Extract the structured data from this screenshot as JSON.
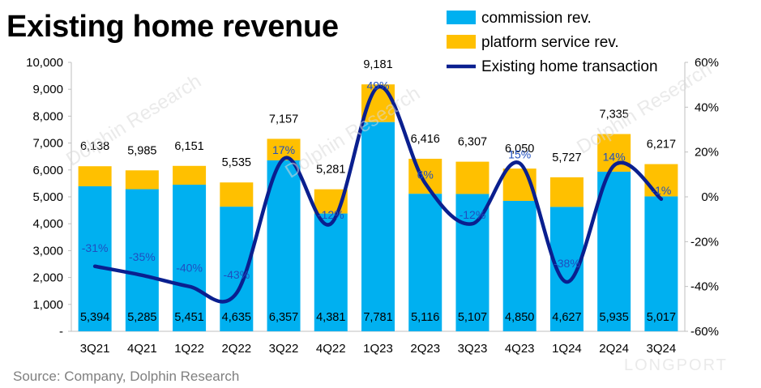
{
  "title": "Existing home revenue",
  "source": "Source: Company, Dolphin Research",
  "watermarks": [
    "Dolphin Research",
    "Dolphin Research",
    "Dolphin Research",
    "LONGPORT"
  ],
  "colors": {
    "commission": "#00B0F0",
    "platform": "#FFC000",
    "line": "#0A1F8F",
    "pct_label": "#1F4FC0"
  },
  "chart_data": {
    "type": "bar",
    "categories": [
      "3Q21",
      "4Q21",
      "1Q22",
      "2Q22",
      "3Q22",
      "4Q22",
      "1Q23",
      "2Q23",
      "3Q23",
      "4Q23",
      "1Q24",
      "2Q24",
      "3Q24"
    ],
    "series": [
      {
        "name": "commission rev.",
        "type": "bar",
        "stack": "rev",
        "axis": "left",
        "values": [
          5394,
          5285,
          5451,
          4635,
          6357,
          4381,
          7781,
          5116,
          5107,
          4850,
          4627,
          5935,
          5017
        ]
      },
      {
        "name": "platform service rev.",
        "type": "bar",
        "stack": "rev",
        "axis": "left",
        "values": [
          744,
          700,
          700,
          900,
          800,
          900,
          1400,
          1300,
          1200,
          1200,
          1100,
          1400,
          1200
        ]
      },
      {
        "name": "Existing home transaction",
        "type": "line",
        "axis": "right",
        "values": [
          -31,
          -35,
          -40,
          -43,
          17,
          -12,
          49,
          6,
          -12,
          15,
          -38,
          14,
          -1
        ]
      }
    ],
    "totals": [
      6138,
      5985,
      6151,
      5535,
      7157,
      5281,
      9181,
      6416,
      6307,
      6050,
      5727,
      7335,
      6217
    ],
    "total_labels": [
      "6,138",
      "5,985",
      "6,151",
      "5,535",
      "7,157",
      "5,281",
      "9,181",
      "6,416",
      "6,307",
      "6,050",
      "5,727",
      "7,335",
      "6,217"
    ],
    "commission_labels": [
      "5,394",
      "5,285",
      "5,451",
      "4,635",
      "6,357",
      "4,381",
      "7,781",
      "5,116",
      "5,107",
      "4,850",
      "4,627",
      "5,935",
      "5,017"
    ],
    "pct_labels": [
      "-31%",
      "-35%",
      "-40%",
      "-43%",
      "17%",
      "-12%",
      "49%",
      "6%",
      "-12%",
      "15%",
      "-38%",
      "14%",
      "-1%"
    ],
    "left_axis": {
      "min": 0,
      "max": 10000,
      "ticks": [
        "-",
        "1,000",
        "2,000",
        "3,000",
        "4,000",
        "5,000",
        "6,000",
        "7,000",
        "8,000",
        "9,000",
        "10,000"
      ]
    },
    "right_axis": {
      "min": -60,
      "max": 60,
      "ticks": [
        "-60%",
        "-40%",
        "-20%",
        "0%",
        "20%",
        "40%",
        "60%"
      ]
    },
    "grid": false,
    "legend_position": "top-right"
  }
}
